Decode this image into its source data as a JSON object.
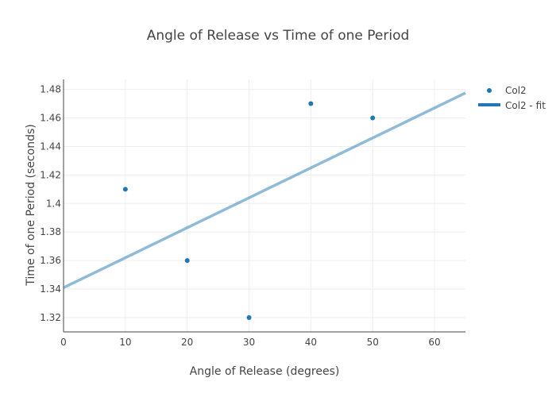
{
  "chart_data": {
    "type": "scatter",
    "title": "Angle of Release vs Time of one Period",
    "xlabel": "Angle of Release (degrees)",
    "ylabel": "Time of one Period (seconds)",
    "xlim": [
      0,
      65
    ],
    "ylim": [
      1.31,
      1.487
    ],
    "x_ticks": [
      0,
      10,
      20,
      30,
      40,
      50,
      60
    ],
    "y_ticks": [
      1.32,
      1.34,
      1.36,
      1.38,
      1.4,
      1.42,
      1.44,
      1.46,
      1.48
    ],
    "x_tick_labels": [
      "0",
      "10",
      "20",
      "30",
      "40",
      "50",
      "60"
    ],
    "y_tick_labels": [
      "1.32",
      "1.34",
      "1.36",
      "1.38",
      "1.4",
      "1.42",
      "1.44",
      "1.46",
      "1.48"
    ],
    "grid": true,
    "legend_position": "top-right",
    "series": [
      {
        "name": "Col2",
        "mode": "markers",
        "color": "#1f77b4",
        "x": [
          10,
          20,
          30,
          40,
          50
        ],
        "y": [
          1.41,
          1.36,
          1.32,
          1.47,
          1.46
        ]
      },
      {
        "name": "Col2 - fit",
        "mode": "line",
        "color": "#1f77b4",
        "x": [
          0,
          65
        ],
        "y": [
          1.341,
          1.4775
        ]
      }
    ]
  }
}
